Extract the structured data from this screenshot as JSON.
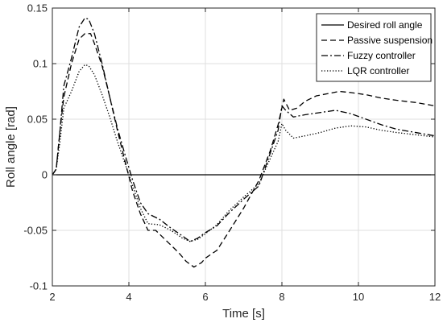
{
  "chart_data": {
    "type": "line",
    "title": "",
    "xlabel": "Time [s]",
    "ylabel": "Roll angle [rad]",
    "xlim": [
      2,
      12
    ],
    "ylim": [
      -0.1,
      0.15
    ],
    "x_ticks": [
      2,
      4,
      6,
      8,
      10,
      12
    ],
    "x_tick_labels": [
      "2",
      "4",
      "6",
      "8",
      "10",
      "12"
    ],
    "y_ticks": [
      -0.1,
      -0.05,
      0,
      0.05,
      0.1,
      0.15
    ],
    "y_tick_labels": [
      "-0.1",
      "-0.05",
      "0",
      "0.05",
      "0.1",
      "0.15"
    ],
    "grid": true,
    "legend_position": "top-right",
    "series": [
      {
        "name": "Desired roll angle",
        "style": "solid",
        "color": "#000000",
        "x": [
          2,
          12
        ],
        "y": [
          0,
          0
        ]
      },
      {
        "name": "Passive suspension",
        "style": "dashed",
        "color": "#000000",
        "x": [
          2.0,
          2.1,
          2.2,
          2.3,
          2.5,
          2.7,
          2.85,
          3.0,
          3.1,
          3.3,
          3.5,
          3.7,
          3.9,
          4.1,
          4.3,
          4.5,
          4.7,
          5.0,
          5.3,
          5.5,
          5.7,
          5.9,
          6.0,
          6.3,
          6.6,
          7.0,
          7.4,
          7.7,
          7.9,
          8.05,
          8.2,
          8.4,
          8.6,
          8.9,
          9.2,
          9.5,
          9.8,
          10.2,
          10.6,
          11.0,
          11.5,
          12.0
        ],
        "y": [
          0.0,
          0.005,
          0.04,
          0.07,
          0.1,
          0.122,
          0.127,
          0.127,
          0.118,
          0.098,
          0.07,
          0.04,
          0.012,
          -0.015,
          -0.035,
          -0.05,
          -0.05,
          -0.06,
          -0.07,
          -0.078,
          -0.083,
          -0.079,
          -0.075,
          -0.068,
          -0.052,
          -0.03,
          -0.005,
          0.022,
          0.045,
          0.068,
          0.058,
          0.06,
          0.066,
          0.071,
          0.073,
          0.075,
          0.074,
          0.072,
          0.069,
          0.067,
          0.065,
          0.062
        ]
      },
      {
        "name": "Fuzzy controller",
        "style": "dash-dot",
        "color": "#000000",
        "x": [
          2.0,
          2.1,
          2.2,
          2.3,
          2.5,
          2.7,
          2.85,
          2.95,
          3.1,
          3.3,
          3.5,
          3.7,
          3.9,
          4.1,
          4.3,
          4.5,
          4.8,
          5.1,
          5.4,
          5.6,
          5.8,
          6.0,
          6.3,
          6.6,
          7.0,
          7.4,
          7.7,
          7.9,
          8.0,
          8.1,
          8.3,
          8.6,
          9.0,
          9.4,
          9.8,
          10.2,
          10.6,
          11.0,
          11.5,
          12.0
        ],
        "y": [
          0.0,
          0.005,
          0.04,
          0.08,
          0.105,
          0.133,
          0.141,
          0.14,
          0.127,
          0.1,
          0.07,
          0.042,
          0.018,
          -0.005,
          -0.025,
          -0.035,
          -0.04,
          -0.048,
          -0.055,
          -0.06,
          -0.057,
          -0.052,
          -0.046,
          -0.035,
          -0.022,
          -0.01,
          0.02,
          0.04,
          0.062,
          0.058,
          0.052,
          0.054,
          0.056,
          0.058,
          0.055,
          0.05,
          0.045,
          0.041,
          0.038,
          0.035
        ]
      },
      {
        "name": "LQR controller",
        "style": "dotted",
        "color": "#000000",
        "x": [
          2.0,
          2.1,
          2.2,
          2.3,
          2.5,
          2.7,
          2.85,
          2.95,
          3.1,
          3.3,
          3.5,
          3.7,
          3.9,
          4.1,
          4.3,
          4.5,
          4.8,
          5.1,
          5.4,
          5.6,
          5.8,
          6.0,
          6.3,
          6.6,
          7.0,
          7.4,
          7.7,
          7.9,
          8.0,
          8.1,
          8.3,
          8.6,
          9.0,
          9.4,
          9.8,
          10.2,
          10.6,
          11.0,
          11.5,
          12.0
        ],
        "y": [
          0.0,
          0.005,
          0.03,
          0.06,
          0.075,
          0.093,
          0.099,
          0.098,
          0.09,
          0.072,
          0.052,
          0.03,
          0.01,
          -0.01,
          -0.03,
          -0.044,
          -0.045,
          -0.05,
          -0.057,
          -0.06,
          -0.058,
          -0.053,
          -0.045,
          -0.033,
          -0.02,
          -0.008,
          0.015,
          0.03,
          0.046,
          0.04,
          0.033,
          0.035,
          0.038,
          0.042,
          0.044,
          0.043,
          0.04,
          0.038,
          0.036,
          0.034
        ]
      }
    ]
  }
}
